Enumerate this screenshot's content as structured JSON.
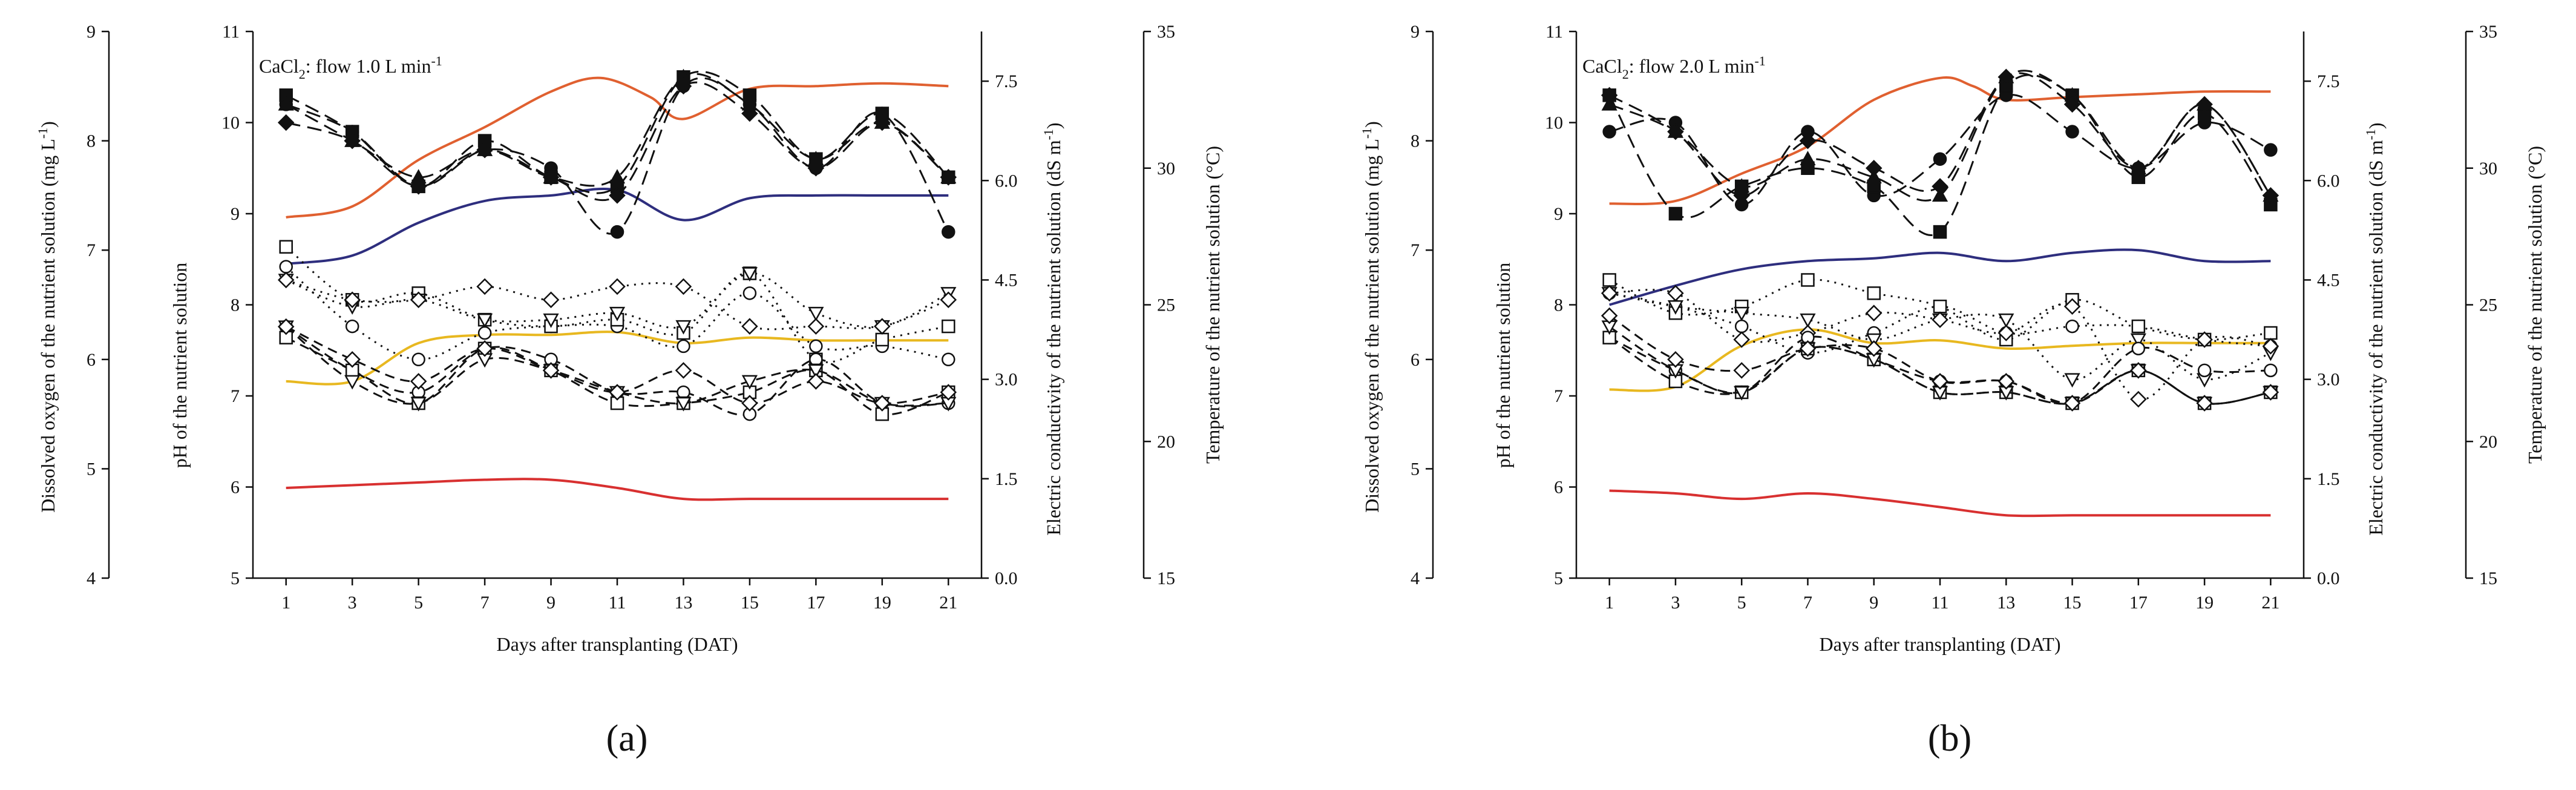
{
  "figure": {
    "captions": [
      "(a)",
      "(b)"
    ]
  },
  "chart_data": [
    {
      "type": "line",
      "panel": "(a)",
      "title": "CaCl",
      "title_sub": "2",
      "title_rest": ": flow 1.0 L min",
      "title_sup": "-1",
      "xlabel": "Days after transplanting (DAT)",
      "x": [
        1,
        3,
        5,
        7,
        9,
        11,
        13,
        15,
        17,
        19,
        21
      ],
      "xlim": [
        0,
        22
      ],
      "axes": {
        "do": {
          "label": "Dissolved oxygen of the nutrient solution (mg L",
          "label_sup": "-1",
          "label_end": ")",
          "lim": [
            4,
            9
          ],
          "ticks": [
            "4",
            "5",
            "6",
            "7",
            "8",
            "9"
          ]
        },
        "ph": {
          "label": "pH of the nutrient solution",
          "lim": [
            5,
            11
          ],
          "ticks": [
            "5",
            "6",
            "7",
            "8",
            "9",
            "10",
            "11"
          ]
        },
        "ec": {
          "label": "Electric conductivity of the nutrient solution (dS m",
          "label_sup": "-1",
          "label_end": ")",
          "lim": [
            0,
            8.25
          ],
          "ticks": [
            "0.0",
            "1.5",
            "3.0",
            "4.5",
            "6.0",
            "7.5"
          ]
        },
        "temp": {
          "label": "Temperature of the nutrient solution (°C)",
          "lim": [
            15,
            35
          ],
          "ticks": [
            "15",
            "20",
            "25",
            "30",
            "35"
          ]
        }
      },
      "temperature_curves": [
        {
          "color": "#e06030",
          "axis": "temp",
          "x": [
            1,
            3,
            5,
            7,
            9,
            10.5,
            12,
            13,
            15,
            17,
            19,
            21
          ],
          "y": [
            28.2,
            28.6,
            30.3,
            31.5,
            32.8,
            33.3,
            32.6,
            31.8,
            32.9,
            33.0,
            33.1,
            33.0
          ]
        },
        {
          "color": "#2e2e7e",
          "axis": "temp",
          "x": [
            1,
            3,
            5,
            7,
            9,
            11,
            13,
            15,
            17,
            19,
            21
          ],
          "y": [
            26.5,
            26.8,
            28.0,
            28.8,
            29.0,
            29.2,
            28.1,
            28.9,
            29.0,
            29.0,
            29.0
          ]
        },
        {
          "color": "#e8b820",
          "axis": "temp",
          "x": [
            1,
            3,
            5,
            7,
            9,
            11,
            13,
            15,
            17,
            19,
            21
          ],
          "y": [
            22.2,
            22.2,
            23.6,
            23.9,
            23.9,
            24.0,
            23.6,
            23.8,
            23.7,
            23.7,
            23.7
          ]
        },
        {
          "color": "#d83030",
          "axis": "temp",
          "x": [
            1,
            3,
            5,
            7,
            9,
            11,
            13,
            15,
            17,
            19,
            21
          ],
          "y": [
            18.3,
            18.4,
            18.5,
            18.6,
            18.6,
            18.3,
            17.9,
            17.9,
            17.9,
            17.9,
            17.9
          ]
        }
      ],
      "ph_series": [
        {
          "marker": "circle-filled",
          "axis": "ph",
          "values": [
            10.2,
            9.9,
            9.3,
            9.7,
            9.5,
            8.8,
            10.4,
            10.2,
            9.5,
            10.1,
            8.8
          ]
        },
        {
          "marker": "square-filled",
          "axis": "ph",
          "values": [
            10.3,
            9.9,
            9.3,
            9.8,
            9.4,
            9.3,
            10.5,
            10.3,
            9.6,
            10.1,
            9.4
          ]
        },
        {
          "marker": "triangle-filled",
          "axis": "ph",
          "values": [
            10.2,
            9.8,
            9.4,
            9.7,
            9.4,
            9.4,
            10.5,
            10.2,
            9.6,
            10.0,
            9.4
          ]
        },
        {
          "marker": "diamond-filled",
          "axis": "ph",
          "values": [
            10.0,
            9.8,
            9.3,
            9.7,
            9.4,
            9.2,
            10.4,
            10.1,
            9.5,
            10.0,
            9.4
          ]
        }
      ],
      "ec_series": [
        {
          "marker": "circle-open",
          "axis": "ec",
          "values": [
            4.7,
            3.8,
            3.3,
            3.7,
            3.8,
            3.8,
            3.5,
            4.3,
            3.5,
            3.5,
            3.3
          ]
        },
        {
          "marker": "square-open",
          "axis": "ec",
          "values": [
            5.0,
            4.2,
            4.3,
            3.9,
            3.8,
            3.9,
            3.7,
            4.6,
            3.3,
            3.6,
            3.8
          ]
        },
        {
          "marker": "triangle-open",
          "axis": "ec",
          "values": [
            4.5,
            4.1,
            4.2,
            3.9,
            3.9,
            4.0,
            3.8,
            4.6,
            4.0,
            3.8,
            4.3
          ]
        },
        {
          "marker": "diamond-open",
          "axis": "ec",
          "values": [
            4.5,
            4.2,
            4.2,
            4.4,
            4.2,
            4.4,
            4.4,
            3.8,
            3.8,
            3.8,
            4.2
          ]
        }
      ],
      "do_series": [
        {
          "marker": "circle-open",
          "axis": "do",
          "values": [
            6.3,
            5.9,
            5.7,
            6.1,
            6.0,
            5.7,
            5.7,
            5.5,
            6.0,
            5.6,
            5.6
          ]
        },
        {
          "marker": "square-open",
          "axis": "do",
          "values": [
            6.2,
            5.9,
            5.6,
            6.1,
            5.9,
            5.6,
            5.6,
            5.7,
            5.9,
            5.5,
            5.7
          ]
        },
        {
          "marker": "triangle-open",
          "axis": "do",
          "values": [
            6.3,
            5.8,
            5.6,
            6.0,
            5.9,
            5.7,
            5.6,
            5.8,
            5.9,
            5.6,
            5.6
          ]
        },
        {
          "marker": "diamond-open",
          "axis": "do",
          "values": [
            6.3,
            6.0,
            5.8,
            6.1,
            5.9,
            5.7,
            5.9,
            5.6,
            5.8,
            5.6,
            5.7
          ]
        }
      ]
    },
    {
      "type": "line",
      "panel": "(b)",
      "title": "CaCl",
      "title_sub": "2",
      "title_rest": ": flow 2.0 L min",
      "title_sup": "-1",
      "xlabel": "Days after transplanting (DAT)",
      "x": [
        1,
        3,
        5,
        7,
        9,
        11,
        13,
        15,
        17,
        19,
        21
      ],
      "xlim": [
        0,
        22
      ],
      "axes": {
        "do": {
          "label": "Dissolved oxygen of the nutrient solution (mg L",
          "label_sup": "-1",
          "label_end": ")",
          "lim": [
            4,
            9
          ],
          "ticks": [
            "4",
            "5",
            "6",
            "7",
            "8",
            "9"
          ]
        },
        "ph": {
          "label": "pH of the nutrient solution",
          "lim": [
            5,
            11
          ],
          "ticks": [
            "5",
            "6",
            "7",
            "8",
            "9",
            "10",
            "11"
          ]
        },
        "ec": {
          "label": "Electric conductivity of the nutrient solution (dS m",
          "label_sup": "-1",
          "label_end": ")",
          "lim": [
            0,
            8.25
          ],
          "ticks": [
            "0.0",
            "1.5",
            "3.0",
            "4.5",
            "6.0",
            "7.5"
          ]
        },
        "temp": {
          "label": "Temperature of the nutrient solution (°C)",
          "lim": [
            15,
            35
          ],
          "ticks": [
            "15",
            "20",
            "25",
            "30",
            "35"
          ]
        }
      },
      "temperature_curves": [
        {
          "color": "#e06030",
          "axis": "temp",
          "x": [
            1,
            3,
            5,
            7,
            9,
            11,
            12,
            13,
            15,
            17,
            19,
            21
          ],
          "y": [
            28.7,
            28.8,
            29.8,
            30.8,
            32.5,
            33.3,
            33.0,
            32.5,
            32.6,
            32.7,
            32.8,
            32.8
          ]
        },
        {
          "color": "#2e2e7e",
          "axis": "temp",
          "x": [
            1,
            3,
            5,
            7,
            9,
            11,
            13,
            15,
            17,
            19,
            21
          ],
          "y": [
            25.0,
            25.7,
            26.3,
            26.6,
            26.7,
            26.9,
            26.6,
            26.9,
            27.0,
            26.6,
            26.6
          ]
        },
        {
          "color": "#e8b820",
          "axis": "temp",
          "x": [
            1,
            3,
            5,
            7,
            9,
            11,
            13,
            15,
            17,
            19,
            21
          ],
          "y": [
            21.9,
            22.0,
            23.5,
            24.1,
            23.6,
            23.7,
            23.4,
            23.5,
            23.6,
            23.6,
            23.6
          ]
        },
        {
          "color": "#d83030",
          "axis": "temp",
          "x": [
            1,
            3,
            5,
            7,
            9,
            11,
            13,
            15,
            17,
            19,
            21
          ],
          "y": [
            18.2,
            18.1,
            17.9,
            18.1,
            17.9,
            17.6,
            17.3,
            17.3,
            17.3,
            17.3,
            17.3
          ]
        }
      ],
      "ph_series": [
        {
          "marker": "circle-filled",
          "axis": "ph",
          "values": [
            9.9,
            10.0,
            9.1,
            9.9,
            9.2,
            9.6,
            10.3,
            9.9,
            9.5,
            10.0,
            9.7
          ]
        },
        {
          "marker": "square-filled",
          "axis": "ph",
          "values": [
            10.3,
            9.0,
            9.3,
            9.5,
            9.3,
            8.8,
            10.4,
            10.3,
            9.4,
            10.1,
            9.1
          ]
        },
        {
          "marker": "triangle-filled",
          "axis": "ph",
          "values": [
            10.2,
            9.9,
            9.3,
            9.6,
            9.4,
            9.2,
            10.5,
            10.3,
            9.5,
            10.2,
            9.2
          ]
        },
        {
          "marker": "diamond-filled",
          "axis": "ph",
          "values": [
            10.3,
            9.9,
            9.2,
            9.8,
            9.5,
            9.3,
            10.5,
            10.2,
            9.5,
            10.2,
            9.2
          ]
        }
      ],
      "ec_series": [
        {
          "marker": "circle-open",
          "axis": "ec",
          "values": [
            4.3,
            4.1,
            3.8,
            3.4,
            3.7,
            4.1,
            3.7,
            3.8,
            3.8,
            3.6,
            3.5
          ]
        },
        {
          "marker": "square-open",
          "axis": "ec",
          "values": [
            4.5,
            4.0,
            4.1,
            4.5,
            4.3,
            4.1,
            3.6,
            4.2,
            3.8,
            3.6,
            3.7
          ]
        },
        {
          "marker": "triangle-open",
          "axis": "ec",
          "values": [
            4.3,
            4.1,
            4.0,
            3.9,
            3.6,
            3.9,
            3.9,
            3.0,
            3.6,
            3.0,
            3.4
          ]
        },
        {
          "marker": "diamond-open",
          "axis": "ec",
          "values": [
            4.3,
            4.3,
            3.6,
            3.7,
            4.0,
            3.9,
            3.7,
            4.1,
            2.7,
            3.6,
            3.5
          ]
        }
      ],
      "do_series": [
        {
          "marker": "circle-open",
          "axis": "do",
          "values": [
            6.2,
            5.9,
            5.7,
            6.2,
            6.0,
            5.8,
            5.8,
            5.6,
            6.1,
            5.9,
            5.9
          ]
        },
        {
          "marker": "square-open",
          "axis": "do",
          "values": [
            6.2,
            5.8,
            5.7,
            6.1,
            6.0,
            5.7,
            5.7,
            5.6,
            5.9,
            5.6,
            5.7
          ]
        },
        {
          "marker": "triangle-open",
          "axis": "do",
          "values": [
            6.3,
            5.9,
            5.7,
            6.1,
            6.0,
            5.7,
            5.7,
            5.6,
            5.9,
            5.6,
            5.7
          ]
        },
        {
          "marker": "diamond-open",
          "axis": "do",
          "values": [
            6.4,
            6.0,
            5.9,
            6.1,
            6.1,
            5.8,
            5.8,
            5.6,
            5.9,
            5.6,
            5.7
          ]
        }
      ]
    }
  ]
}
